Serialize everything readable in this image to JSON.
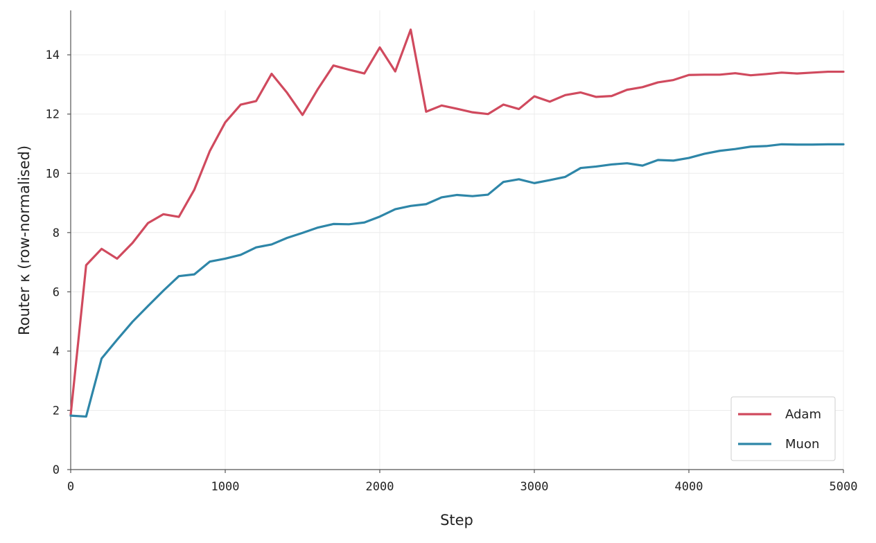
{
  "chart_data": {
    "type": "line",
    "title": "",
    "xlabel": "Step",
    "ylabel": "Router κ (row-normalised)",
    "xlim": [
      0,
      5000
    ],
    "ylim": [
      0,
      15.5
    ],
    "xticks": [
      0,
      1000,
      2000,
      3000,
      4000,
      5000
    ],
    "yticks": [
      0,
      2,
      4,
      6,
      8,
      10,
      12,
      14
    ],
    "grid": true,
    "legend_position": "bottom-right",
    "x": [
      0,
      100,
      200,
      300,
      400,
      500,
      600,
      700,
      800,
      900,
      1000,
      1100,
      1200,
      1300,
      1400,
      1500,
      1600,
      1700,
      1800,
      1900,
      2000,
      2100,
      2200,
      2300,
      2400,
      2500,
      2600,
      2700,
      2800,
      2900,
      3000,
      3100,
      3200,
      3300,
      3400,
      3500,
      3600,
      3700,
      3800,
      3900,
      4000,
      4100,
      4200,
      4300,
      4400,
      4500,
      4600,
      4700,
      4800,
      4900,
      5000
    ],
    "series": [
      {
        "name": "Adam",
        "color": "#d04a5e",
        "values": [
          1.85,
          6.9,
          7.45,
          7.12,
          7.65,
          8.32,
          8.62,
          8.53,
          9.45,
          10.75,
          11.72,
          12.32,
          12.44,
          13.36,
          12.72,
          11.97,
          12.85,
          13.64,
          13.5,
          13.37,
          14.25,
          13.44,
          14.85,
          12.08,
          12.29,
          12.18,
          12.06,
          12.0,
          12.32,
          12.17,
          12.6,
          12.42,
          12.64,
          12.73,
          12.58,
          12.61,
          12.82,
          12.91,
          13.07,
          13.15,
          13.32,
          13.33,
          13.33,
          13.38,
          13.31,
          13.35,
          13.4,
          13.37,
          13.4,
          13.43,
          13.43
        ]
      },
      {
        "name": "Muon",
        "color": "#2e86a8",
        "values": [
          1.82,
          1.79,
          3.75,
          4.38,
          4.99,
          5.52,
          6.04,
          6.53,
          6.59,
          7.02,
          7.12,
          7.25,
          7.5,
          7.6,
          7.82,
          7.99,
          8.17,
          8.29,
          8.28,
          8.34,
          8.54,
          8.79,
          8.9,
          8.96,
          9.19,
          9.27,
          9.23,
          9.28,
          9.71,
          9.8,
          9.67,
          9.77,
          9.88,
          10.18,
          10.23,
          10.3,
          10.34,
          10.26,
          10.45,
          10.43,
          10.52,
          10.66,
          10.76,
          10.82,
          10.9,
          10.92,
          10.98,
          10.97,
          10.97,
          10.98,
          10.98
        ]
      }
    ]
  }
}
